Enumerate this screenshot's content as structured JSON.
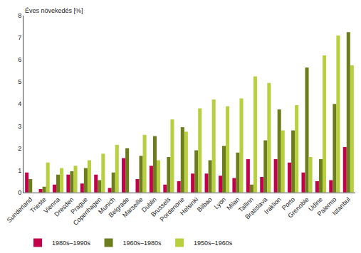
{
  "chart_data": {
    "type": "bar",
    "ylabel": "Éves növekedés [%]",
    "categories": [
      "Sunderland",
      "Trieste",
      "Vienna",
      "Dresden",
      "Prague",
      "Copenhagen",
      "Munich",
      "Belgrade",
      "Marseille",
      "Dublin",
      "Brussels",
      "Pordenone",
      "Helsinki",
      "Bilbao",
      "Lyon",
      "Milan",
      "Tallinn",
      "Bratislava",
      "Iraklion",
      "Porto",
      "Grenoble",
      "Udine",
      "Palermo",
      "Istanbul"
    ],
    "series": [
      {
        "name": "1980s–1990s",
        "color": "#c3004a",
        "values": [
          0.9,
          0.15,
          0.35,
          0.8,
          0.4,
          0.8,
          0.2,
          1.55,
          0.6,
          1.2,
          0.35,
          0.5,
          0.85,
          0.85,
          0.75,
          0.65,
          1.5,
          0.7,
          1.5,
          1.35,
          0.9,
          0.5,
          0.55,
          2.05
        ]
      },
      {
        "name": "1960s–1980s",
        "color": "#6b7d1d",
        "values": [
          0.6,
          0.25,
          0.8,
          0.95,
          1.1,
          0.55,
          0.9,
          2.0,
          1.65,
          2.55,
          1.6,
          2.95,
          1.9,
          1.45,
          2.1,
          1.8,
          0.35,
          2.35,
          3.75,
          2.8,
          5.65,
          1.5,
          4.0,
          7.25
        ]
      },
      {
        "name": "1950s–1960s",
        "color": "#b8cf3f",
        "values": [
          null,
          1.35,
          1.1,
          1.2,
          1.45,
          1.75,
          2.15,
          null,
          2.6,
          1.45,
          3.3,
          2.75,
          3.8,
          4.2,
          3.9,
          4.25,
          5.25,
          4.95,
          2.8,
          3.95,
          1.6,
          6.2,
          7.1,
          5.75
        ]
      }
    ],
    "ylim": [
      0,
      8
    ],
    "yticks": [
      0,
      1,
      2,
      3,
      4,
      5,
      6,
      7,
      8
    ],
    "grid": false,
    "legend": "bottom"
  }
}
